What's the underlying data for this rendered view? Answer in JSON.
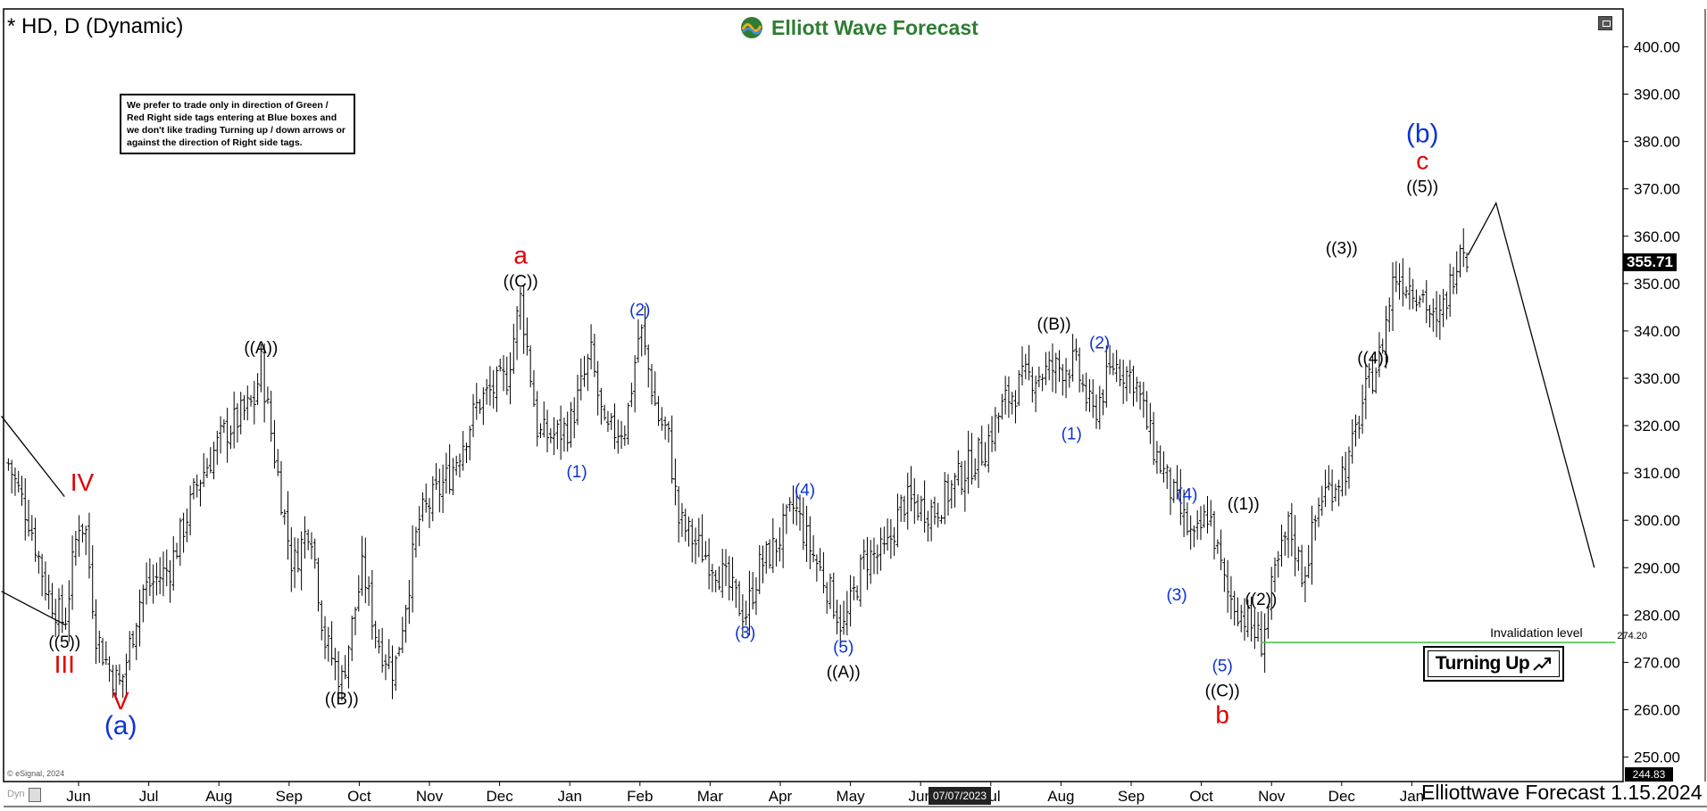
{
  "header": {
    "ticker": "* HD, D (Dynamic)",
    "brand": "Elliott Wave Forecast"
  },
  "note": "We prefer to trade only in direction of Green / Red Right side tags entering at Blue boxes and we don't like trading Turning up / down arrows or against the direction of Right side tags.",
  "footer": {
    "brand_date": "Elliottwave Forecast 1.15.2024",
    "copyright": "© eSignal, 2024",
    "dyn": "Dyn"
  },
  "tags": {
    "last_price": "355.71",
    "low_price": "244.83",
    "crosshair_date": "07/07/2023",
    "turning": "Turning Up"
  },
  "colors": {
    "black": "#000000",
    "red": "#e00000",
    "blue": "#0b33d6",
    "green": "#3cbf3c",
    "brand": "#2e7d32"
  },
  "chart_data": {
    "type": "ohlc",
    "symbol": "HD",
    "timeframe": "D",
    "ylim": [
      244.83,
      408
    ],
    "y_ticks": [
      "250.00",
      "260.00",
      "270.00",
      "280.00",
      "290.00",
      "300.00",
      "310.00",
      "320.00",
      "330.00",
      "340.00",
      "350.00",
      "360.00",
      "370.00",
      "380.00",
      "390.00",
      "400.00"
    ],
    "x_months": [
      "Jun",
      "Jul",
      "Aug",
      "Sep",
      "Oct",
      "Nov",
      "Dec",
      "Jan",
      "Feb",
      "Mar",
      "Apr",
      "May",
      "Jun",
      "Jul",
      "Aug",
      "Sep",
      "Oct",
      "Nov",
      "Dec",
      "Jan"
    ],
    "x_month_index": [
      1,
      2,
      3,
      4,
      5,
      6,
      7,
      8,
      9,
      10,
      11,
      12,
      13,
      14,
      15,
      16,
      17,
      18,
      19,
      20
    ],
    "price_path": [
      [
        0.0,
        312
      ],
      [
        0.3,
        300
      ],
      [
        0.55,
        285
      ],
      [
        0.8,
        278
      ],
      [
        1.0,
        300
      ],
      [
        1.1,
        298
      ],
      [
        1.25,
        276
      ],
      [
        1.45,
        268
      ],
      [
        1.6,
        265
      ],
      [
        1.9,
        285
      ],
      [
        2.3,
        290
      ],
      [
        2.7,
        308
      ],
      [
        3.05,
        318
      ],
      [
        3.5,
        325
      ],
      [
        3.6,
        333
      ],
      [
        3.75,
        318
      ],
      [
        4.05,
        290
      ],
      [
        4.3,
        300
      ],
      [
        4.5,
        275
      ],
      [
        4.75,
        266
      ],
      [
        5.05,
        290
      ],
      [
        5.25,
        275
      ],
      [
        5.5,
        268
      ],
      [
        5.85,
        300
      ],
      [
        6.3,
        310
      ],
      [
        6.7,
        325
      ],
      [
        7.1,
        330
      ],
      [
        7.3,
        347
      ],
      [
        7.55,
        318
      ],
      [
        7.8,
        318
      ],
      [
        8.0,
        320
      ],
      [
        8.3,
        335
      ],
      [
        8.5,
        318
      ],
      [
        8.8,
        320
      ],
      [
        9.0,
        341
      ],
      [
        9.25,
        322
      ],
      [
        9.4,
        318
      ],
      [
        9.55,
        300
      ],
      [
        9.8,
        295
      ],
      [
        10.1,
        290
      ],
      [
        10.5,
        280
      ],
      [
        10.7,
        290
      ],
      [
        10.95,
        295
      ],
      [
        11.2,
        303
      ],
      [
        11.4,
        295
      ],
      [
        11.7,
        285
      ],
      [
        11.9,
        277
      ],
      [
        12.2,
        292
      ],
      [
        12.5,
        293
      ],
      [
        12.75,
        304
      ],
      [
        13.2,
        302
      ],
      [
        13.6,
        310
      ],
      [
        13.9,
        315
      ],
      [
        14.2,
        325
      ],
      [
        14.5,
        330
      ],
      [
        14.9,
        332
      ],
      [
        15.2,
        333
      ],
      [
        15.45,
        322
      ],
      [
        15.75,
        333
      ],
      [
        16.05,
        330
      ],
      [
        16.3,
        316
      ],
      [
        16.6,
        305
      ],
      [
        16.9,
        295
      ],
      [
        17.1,
        302
      ],
      [
        17.35,
        285
      ],
      [
        17.6,
        280
      ],
      [
        17.85,
        274.2
      ],
      [
        18.05,
        288
      ],
      [
        18.25,
        299
      ],
      [
        18.45,
        288
      ],
      [
        18.7,
        305
      ],
      [
        18.9,
        308
      ],
      [
        19.1,
        312
      ],
      [
        19.3,
        325
      ],
      [
        19.55,
        335
      ],
      [
        19.75,
        352
      ],
      [
        19.95,
        350
      ],
      [
        20.15,
        348
      ],
      [
        20.35,
        340
      ],
      [
        20.55,
        350
      ],
      [
        20.7,
        360
      ],
      [
        20.8,
        356
      ]
    ],
    "projection": [
      [
        20.8,
        356
      ],
      [
        21.2,
        367
      ],
      [
        22.6,
        290
      ]
    ],
    "invalidation": {
      "level": 274.2,
      "label": "Invalidation level",
      "value_label": "274.20",
      "from_x": 17.85,
      "to_x": 22.9
    },
    "channel_lines": [
      [
        [
          -0.1,
          322
        ],
        [
          0.8,
          305
        ]
      ],
      [
        [
          -0.1,
          285
        ],
        [
          0.8,
          278
        ]
      ]
    ],
    "wave_labels": [
      {
        "text": "((5))",
        "x": 0.8,
        "y": 278,
        "pos": "below",
        "color": "black"
      },
      {
        "text": "III",
        "x": 0.8,
        "y": 278,
        "pos": "below2",
        "color": "red"
      },
      {
        "text": "IV",
        "x": 1.05,
        "y": 304,
        "pos": "above",
        "color": "red"
      },
      {
        "text": "V",
        "x": 1.6,
        "y": 265,
        "pos": "below",
        "color": "red"
      },
      {
        "text": "(a)",
        "x": 1.6,
        "y": 265,
        "pos": "below2",
        "color": "blue"
      },
      {
        "text": "((A))",
        "x": 3.6,
        "y": 333,
        "pos": "above",
        "color": "black"
      },
      {
        "text": "((B))",
        "x": 4.75,
        "y": 266,
        "pos": "below",
        "color": "black"
      },
      {
        "text": "((C))",
        "x": 7.3,
        "y": 347,
        "pos": "above",
        "color": "black"
      },
      {
        "text": "a",
        "x": 7.3,
        "y": 347,
        "pos": "above2",
        "color": "red"
      },
      {
        "text": "(1)",
        "x": 8.1,
        "y": 314,
        "pos": "below",
        "color": "blue"
      },
      {
        "text": "(2)",
        "x": 9.0,
        "y": 341,
        "pos": "above",
        "color": "blue"
      },
      {
        "text": "(3)",
        "x": 10.5,
        "y": 280,
        "pos": "below",
        "color": "blue"
      },
      {
        "text": "(4)",
        "x": 11.35,
        "y": 303,
        "pos": "above",
        "color": "blue"
      },
      {
        "text": "(5)",
        "x": 11.9,
        "y": 277,
        "pos": "below",
        "color": "blue"
      },
      {
        "text": "((A))",
        "x": 11.9,
        "y": 277,
        "pos": "below2",
        "color": "black"
      },
      {
        "text": "((B))",
        "x": 14.9,
        "y": 338,
        "pos": "above",
        "color": "black"
      },
      {
        "text": "(1)",
        "x": 15.15,
        "y": 322,
        "pos": "below",
        "color": "blue"
      },
      {
        "text": "(2)",
        "x": 15.55,
        "y": 334,
        "pos": "above",
        "color": "blue"
      },
      {
        "text": "(3)",
        "x": 16.65,
        "y": 288,
        "pos": "below",
        "color": "blue"
      },
      {
        "text": "(4)",
        "x": 16.8,
        "y": 302,
        "pos": "above",
        "color": "blue"
      },
      {
        "text": "(5)",
        "x": 17.3,
        "y": 273,
        "pos": "below",
        "color": "blue"
      },
      {
        "text": "((C))",
        "x": 17.3,
        "y": 273,
        "pos": "below2",
        "color": "black"
      },
      {
        "text": "b",
        "x": 17.3,
        "y": 273,
        "pos": "below3",
        "color": "red"
      },
      {
        "text": "((1))",
        "x": 17.6,
        "y": 300,
        "pos": "above",
        "color": "black"
      },
      {
        "text": "((2))",
        "x": 17.85,
        "y": 287,
        "pos": "below",
        "color": "black"
      },
      {
        "text": "((3))",
        "x": 19.0,
        "y": 354,
        "pos": "above",
        "color": "black"
      },
      {
        "text": "((4))",
        "x": 19.45,
        "y": 338,
        "pos": "below",
        "color": "black"
      },
      {
        "text": "((5))",
        "x": 20.15,
        "y": 367,
        "pos": "above",
        "color": "black"
      },
      {
        "text": "c",
        "x": 20.15,
        "y": 367,
        "pos": "above2",
        "color": "red"
      },
      {
        "text": "(b)",
        "x": 20.15,
        "y": 367,
        "pos": "above3",
        "color": "blue"
      }
    ]
  }
}
